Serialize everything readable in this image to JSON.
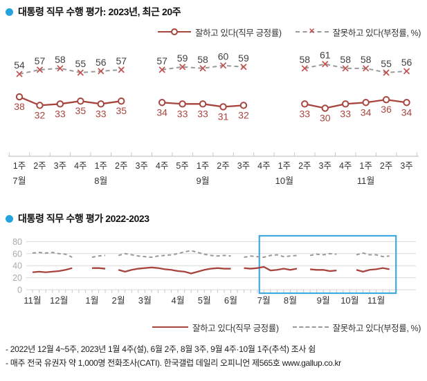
{
  "colors": {
    "approve": "#a8443e",
    "disapprove": "#999999",
    "disapprove_marker": "#c0504d",
    "neg_label": "#3f3f3f",
    "bullet": "#25a3e0",
    "highlight_box": "#3fa9e0",
    "axis": "#c6c6c6",
    "grid": "#d9d9d9",
    "ytick_label": "#aaaaaa",
    "tick_label": "#333333"
  },
  "section1": {
    "title": "대통령 직무 수행 평가: 2023년, 최근 20주"
  },
  "section2": {
    "title": "대통령 직무 수행 평가 2022-2023"
  },
  "legend": {
    "approve": "잘하고 있다(직무 긍정률)",
    "disapprove": "잘못하고 있다(부정률, %)"
  },
  "footnotes": [
    "- 2022년 12월 4~5주, 2023년 1월 4주(설), 6월 2주, 8월 3주, 9월 4주·10월 1주(추석) 조사 쉼",
    "- 매주 전국 유권자 약 1,000명 전화조사(CATI). 한국갤럽 데일리 오피니언 제565호 www.gallup.co.kr"
  ],
  "chart_data": [
    {
      "type": "line",
      "title": "대통령 직무 수행 평가: 2023년, 최근 20주",
      "x_labels": [
        "1주",
        "2주",
        "3주",
        "4주",
        "1주",
        "2주",
        "3주",
        "4주",
        "5주",
        "1주",
        "2주",
        "3주",
        "4주",
        "1주",
        "2주",
        "3주",
        "4주",
        "1주",
        "2주",
        "3주"
      ],
      "month_labels": [
        {
          "text": "7월",
          "week_index": 0
        },
        {
          "text": "8월",
          "week_index": 4
        },
        {
          "text": "9월",
          "week_index": 9
        },
        {
          "text": "10월",
          "week_index": 13
        },
        {
          "text": "11월",
          "week_index": 17
        }
      ],
      "data_labels": true,
      "gaps_are_skipped_surveys": true,
      "series": [
        {
          "name": "잘하고 있다(직무 긍정률)",
          "style": "solid",
          "marker": "circle",
          "values": [
            38,
            32,
            33,
            35,
            33,
            35,
            null,
            34,
            33,
            33,
            31,
            32,
            null,
            null,
            33,
            30,
            33,
            34,
            36,
            34
          ]
        },
        {
          "name": "잘못하고 있다(부정률, %)",
          "style": "dashed",
          "marker": "x",
          "values": [
            54,
            57,
            58,
            55,
            56,
            57,
            null,
            57,
            59,
            58,
            60,
            59,
            null,
            null,
            58,
            61,
            58,
            58,
            55,
            56
          ]
        }
      ]
    },
    {
      "type": "line",
      "title": "대통령 직무 수행 평가 2022-2023",
      "ylim": [
        0,
        80
      ],
      "yticks": [
        0,
        20,
        40,
        60,
        80
      ],
      "weeks_total": 55,
      "month_labels": [
        {
          "text": "11월",
          "week_index": 0
        },
        {
          "text": "12월",
          "week_index": 4
        },
        {
          "text": "1월",
          "week_index": 9
        },
        {
          "text": "2월",
          "week_index": 13
        },
        {
          "text": "3월",
          "week_index": 17
        },
        {
          "text": "4월",
          "week_index": 22
        },
        {
          "text": "5월",
          "week_index": 26
        },
        {
          "text": "6월",
          "week_index": 30
        },
        {
          "text": "7월",
          "week_index": 35
        },
        {
          "text": "8월",
          "week_index": 39
        },
        {
          "text": "9월",
          "week_index": 44
        },
        {
          "text": "10월",
          "week_index": 48
        },
        {
          "text": "11월",
          "week_index": 52
        }
      ],
      "highlight_box": {
        "from_week": 35,
        "to_week": 54
      },
      "series": [
        {
          "name": "잘하고 있다(직무 긍정률)",
          "style": "solid",
          "estimated": true,
          "values": [
            29,
            30,
            29,
            30,
            31,
            33,
            36,
            null,
            null,
            36,
            36,
            35,
            null,
            33,
            30,
            33,
            35,
            36,
            37,
            36,
            34,
            33,
            31,
            30,
            27,
            30,
            33,
            35,
            36,
            35,
            35,
            null,
            36,
            35,
            36,
            38,
            32,
            33,
            35,
            33,
            35,
            null,
            34,
            33,
            33,
            31,
            32,
            null,
            null,
            33,
            30,
            33,
            34,
            36,
            34
          ]
        },
        {
          "name": "잘못하고 있다(부정률, %)",
          "style": "dashed",
          "estimated": true,
          "values": [
            61,
            62,
            61,
            62,
            60,
            59,
            54,
            null,
            null,
            54,
            56,
            57,
            null,
            57,
            60,
            58,
            56,
            55,
            54,
            56,
            57,
            58,
            60,
            63,
            65,
            62,
            59,
            57,
            56,
            57,
            56,
            null,
            54,
            56,
            55,
            54,
            57,
            58,
            55,
            56,
            57,
            null,
            57,
            59,
            58,
            60,
            59,
            null,
            null,
            58,
            61,
            58,
            58,
            55,
            56
          ]
        }
      ]
    }
  ]
}
